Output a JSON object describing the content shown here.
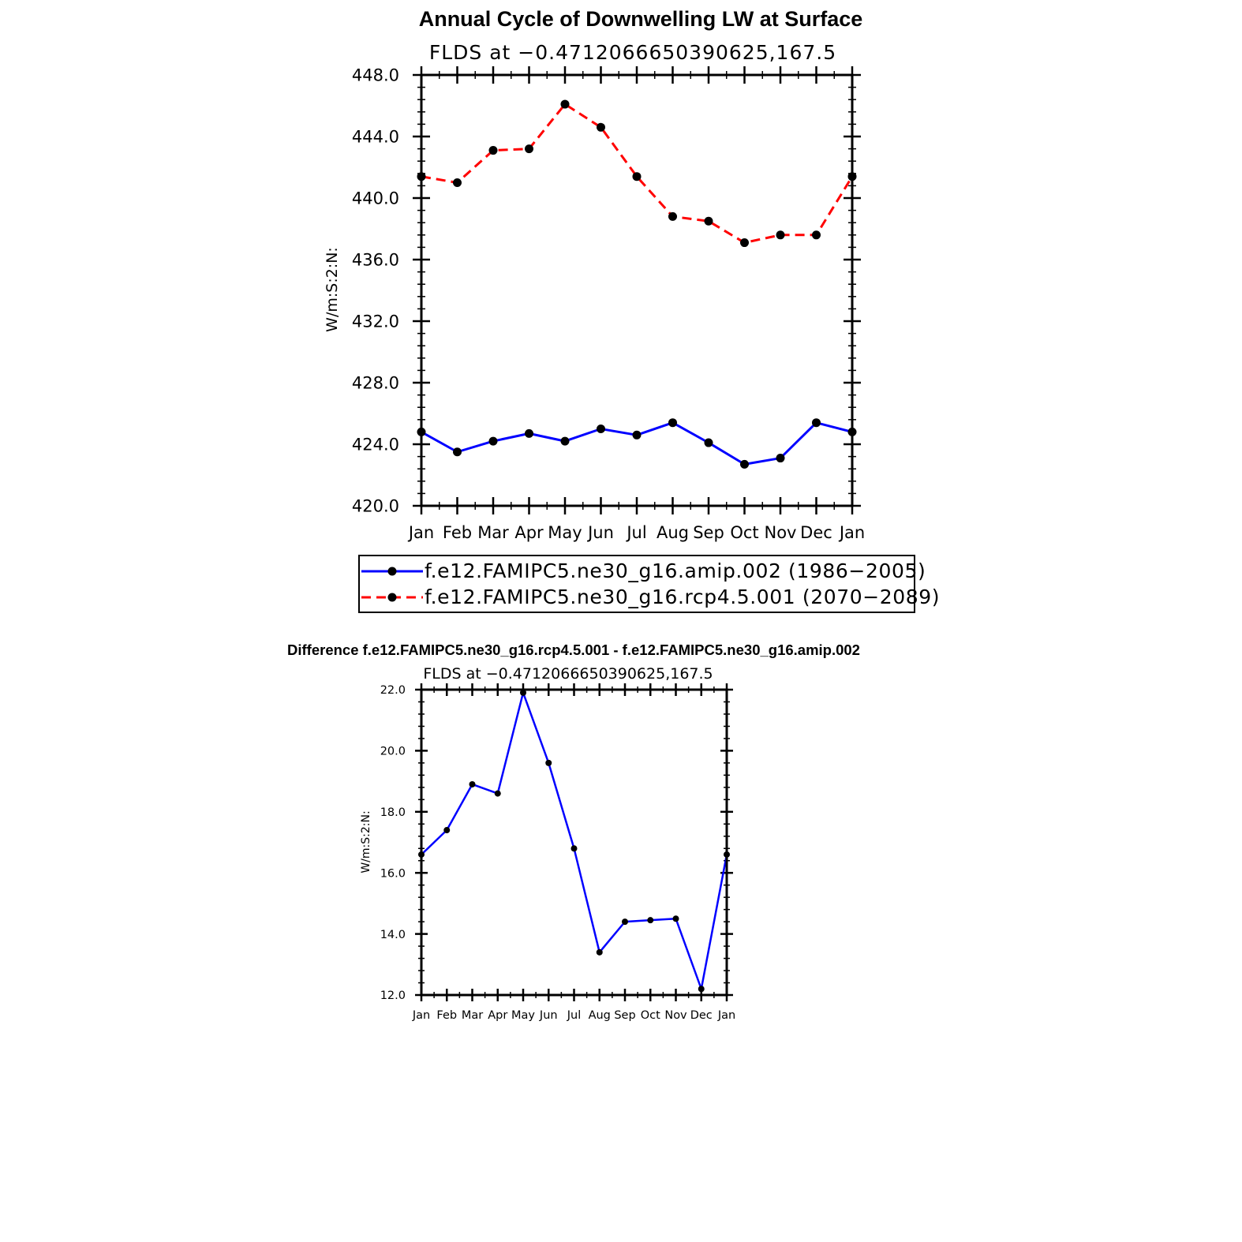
{
  "chart_data": [
    {
      "type": "line",
      "title": "Annual Cycle of Downwelling LW at Surface",
      "subtitle": "FLDS at −0.4712066650390625,167.5",
      "ylabel": "W/m:S:2:N:",
      "xlabel": "",
      "categories": [
        "Jan",
        "Feb",
        "Mar",
        "Apr",
        "May",
        "Jun",
        "Jul",
        "Aug",
        "Sep",
        "Oct",
        "Nov",
        "Dec",
        "Jan"
      ],
      "ylim": [
        420.0,
        448.0
      ],
      "yticks": [
        "420.0",
        "424.0",
        "428.0",
        "432.0",
        "436.0",
        "440.0",
        "444.0",
        "448.0"
      ],
      "grid": false,
      "legend_position": "bottom",
      "series": [
        {
          "name": "f.e12.FAMIPC5.ne30_g16.amip.002 (1986−2005)",
          "color": "#0000ff",
          "dash": "solid",
          "values": [
            424.8,
            423.5,
            424.2,
            424.7,
            424.2,
            425.0,
            424.6,
            425.4,
            424.1,
            422.7,
            423.1,
            425.4,
            424.8
          ]
        },
        {
          "name": "f.e12.FAMIPC5.ne30_g16.rcp4.5.001 (2070−2089)",
          "color": "#ff0000",
          "dash": "dashed",
          "values": [
            441.4,
            441.0,
            443.1,
            443.2,
            446.1,
            444.6,
            441.4,
            438.8,
            438.5,
            437.1,
            437.6,
            437.6,
            441.4
          ]
        }
      ]
    },
    {
      "type": "line",
      "title": "Difference f.e12.FAMIPC5.ne30_g16.rcp4.5.001 - f.e12.FAMIPC5.ne30_g16.amip.002",
      "subtitle": "FLDS at −0.4712066650390625,167.5",
      "ylabel": "W/m:S:2:N:",
      "xlabel": "",
      "categories": [
        "Jan",
        "Feb",
        "Mar",
        "Apr",
        "May",
        "Jun",
        "Jul",
        "Aug",
        "Sep",
        "Oct",
        "Nov",
        "Dec",
        "Jan"
      ],
      "ylim": [
        12.0,
        22.0
      ],
      "yticks": [
        "12.0",
        "14.0",
        "16.0",
        "18.0",
        "20.0",
        "22.0"
      ],
      "grid": false,
      "series": [
        {
          "color": "#0000ff",
          "dash": "solid",
          "values": [
            16.6,
            17.4,
            18.9,
            18.6,
            21.9,
            19.6,
            16.8,
            13.4,
            14.4,
            14.45,
            14.5,
            12.2,
            16.6
          ]
        }
      ]
    }
  ]
}
